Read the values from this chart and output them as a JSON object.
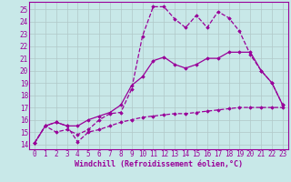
{
  "bg_color": "#c8e8e8",
  "line_color": "#990099",
  "grid_color": "#b0c8c8",
  "xlabel": "Windchill (Refroidissement éolien,°C)",
  "xlabel_fontsize": 6.0,
  "tick_fontsize": 5.5,
  "ylabel_ticks": [
    14,
    15,
    16,
    17,
    18,
    19,
    20,
    21,
    22,
    23,
    24,
    25
  ],
  "xlim": [
    -0.5,
    23.5
  ],
  "ylim": [
    13.6,
    25.6
  ],
  "line1_x": [
    0,
    1,
    2,
    3,
    4,
    5,
    6,
    7,
    8,
    9,
    10,
    11,
    12,
    13,
    14,
    15,
    16,
    17,
    18,
    19,
    20,
    21,
    22,
    23
  ],
  "line1_y": [
    14.1,
    15.5,
    15.0,
    15.2,
    14.8,
    15.2,
    16.0,
    16.5,
    16.6,
    18.5,
    22.8,
    25.2,
    25.2,
    24.2,
    23.5,
    24.5,
    23.5,
    24.8,
    24.3,
    23.2,
    21.3,
    20.0,
    19.0,
    17.2
  ],
  "line2_x": [
    0,
    1,
    2,
    3,
    4,
    5,
    6,
    7,
    8,
    9,
    10,
    11,
    12,
    13,
    14,
    15,
    16,
    17,
    18,
    19,
    20,
    21,
    22,
    23
  ],
  "line2_y": [
    14.1,
    15.5,
    15.8,
    15.5,
    15.5,
    16.0,
    16.3,
    16.6,
    17.2,
    18.8,
    19.5,
    20.8,
    21.1,
    20.5,
    20.2,
    20.5,
    21.0,
    21.0,
    21.5,
    21.5,
    21.5,
    20.0,
    19.0,
    17.2
  ],
  "line3_x": [
    0,
    1,
    2,
    3,
    4,
    5,
    6,
    7,
    8,
    9,
    10,
    11,
    12,
    13,
    14,
    15,
    16,
    17,
    18,
    19,
    20,
    21,
    22,
    23
  ],
  "line3_y": [
    14.1,
    15.5,
    15.8,
    15.5,
    14.2,
    15.0,
    15.2,
    15.5,
    15.8,
    16.0,
    16.2,
    16.3,
    16.4,
    16.5,
    16.5,
    16.6,
    16.7,
    16.8,
    16.9,
    17.0,
    17.0,
    17.0,
    17.0,
    17.0
  ],
  "marker": "D",
  "markersize": 1.8,
  "linewidth": 0.9
}
